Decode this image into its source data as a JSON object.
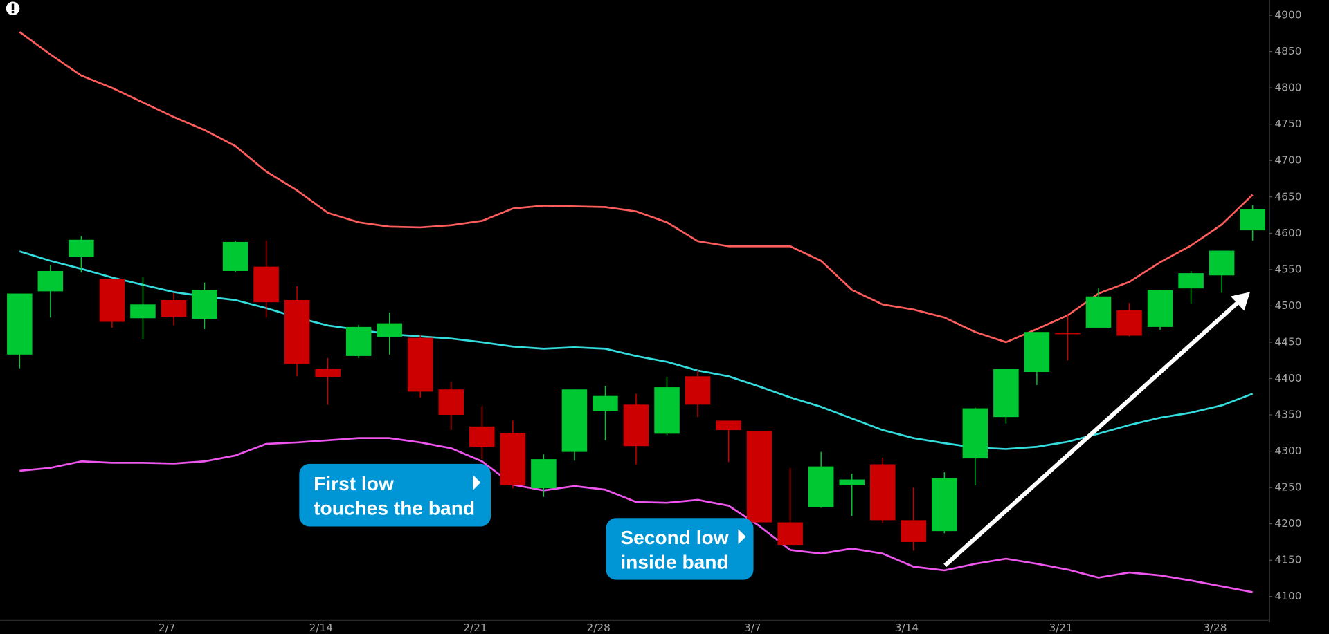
{
  "chart_data": {
    "type": "candlestick",
    "categories": [
      null,
      null,
      null,
      null,
      null,
      "2/7",
      null,
      null,
      null,
      null,
      "2/14",
      null,
      null,
      null,
      null,
      "2/21",
      null,
      null,
      null,
      "2/28",
      null,
      null,
      null,
      null,
      "3/7",
      null,
      null,
      null,
      null,
      "3/14",
      null,
      null,
      null,
      null,
      "3/21",
      null,
      null,
      null,
      null,
      "3/28",
      null
    ],
    "open": [
      4433,
      4520,
      4567,
      4537,
      4483,
      4508,
      4482,
      4548,
      4554,
      4508,
      4413,
      4431,
      4457,
      4456,
      4385,
      4334,
      4325,
      4249,
      4299,
      4355,
      4364,
      4324,
      4403,
      4342,
      4328,
      4202,
      4223,
      4253,
      4282,
      4205,
      4190,
      4290,
      4347,
      4409,
      4463,
      4470,
      4494,
      4471,
      4524,
      4542,
      4604
    ],
    "high": [
      4517,
      4556,
      4596,
      4537,
      4540,
      4518,
      4532,
      4590,
      4590,
      4527,
      4428,
      4474,
      4491,
      4460,
      4396,
      4362,
      4342,
      4296,
      4385,
      4390,
      4379,
      4402,
      4412,
      4342,
      4328,
      4277,
      4299,
      4269,
      4291,
      4250,
      4271,
      4360,
      4413,
      4464,
      4487,
      4524,
      4504,
      4522,
      4548,
      4576,
      4639
    ],
    "low": [
      4414,
      4484,
      4546,
      4470,
      4454,
      4473,
      4468,
      4546,
      4484,
      4403,
      4364,
      4428,
      4433,
      4374,
      4329,
      4289,
      4249,
      4237,
      4287,
      4315,
      4282,
      4322,
      4347,
      4285,
      4202,
      4171,
      4222,
      4211,
      4201,
      4163,
      4187,
      4253,
      4338,
      4391,
      4425,
      4470,
      4458,
      4467,
      4503,
      4518,
      4590
    ],
    "close": [
      4517,
      4548,
      4591,
      4478,
      4502,
      4485,
      4522,
      4588,
      4505,
      4420,
      4402,
      4471,
      4476,
      4382,
      4350,
      4306,
      4253,
      4289,
      4385,
      4376,
      4307,
      4388,
      4364,
      4329,
      4202,
      4171,
      4279,
      4261,
      4205,
      4175,
      4263,
      4359,
      4413,
      4464,
      4461,
      4513,
      4459,
      4522,
      4545,
      4576,
      4633
    ],
    "up_color": "#00c832",
    "down_color": "#cc0000",
    "overlays": [
      {
        "color": "#ff5c5c",
        "values": [
          4877,
          4846,
          4817,
          4800,
          4780,
          4760,
          4742,
          4720,
          4685,
          4659,
          4628,
          4615,
          4609,
          4608,
          4611,
          4617,
          4634,
          4638,
          4637,
          4636,
          4630,
          4615,
          4589,
          4582,
          4582,
          4582,
          4562,
          4522,
          4502,
          4495,
          4484,
          4464,
          4450,
          4468,
          4487,
          4517,
          4533,
          4560,
          4583,
          4612,
          4653
        ]
      },
      {
        "color": "#33dddd",
        "values": [
          4575,
          4562,
          4551,
          4539,
          4529,
          4519,
          4513,
          4508,
          4497,
          4484,
          4473,
          4467,
          4461,
          4458,
          4455,
          4450,
          4444,
          4441,
          4443,
          4441,
          4431,
          4423,
          4411,
          4403,
          4389,
          4374,
          4361,
          4345,
          4329,
          4318,
          4311,
          4305,
          4303,
          4306,
          4313,
          4324,
          4336,
          4346,
          4353,
          4363,
          4379
        ]
      },
      {
        "color": "#ee55ee",
        "values": [
          4273,
          4277,
          4286,
          4284,
          4284,
          4283,
          4286,
          4294,
          4310,
          4312,
          4315,
          4318,
          4318,
          4312,
          4304,
          4286,
          4254,
          4246,
          4252,
          4247,
          4230,
          4229,
          4233,
          4225,
          4197,
          4164,
          4159,
          4166,
          4159,
          4141,
          4136,
          4145,
          4152,
          4145,
          4137,
          4126,
          4133,
          4129,
          4122,
          4114,
          4106
        ]
      }
    ],
    "ylim": [
      4067,
      4921
    ],
    "yticks": [
      4100,
      4150,
      4200,
      4250,
      4300,
      4350,
      4400,
      4450,
      4500,
      4550,
      4600,
      4650,
      4700,
      4750,
      4800,
      4850,
      4900
    ],
    "grid": false,
    "annotations": [
      {
        "lines": [
          "First low",
          "touches the band"
        ]
      },
      {
        "lines": [
          "Second low",
          "inside band"
        ]
      }
    ]
  }
}
